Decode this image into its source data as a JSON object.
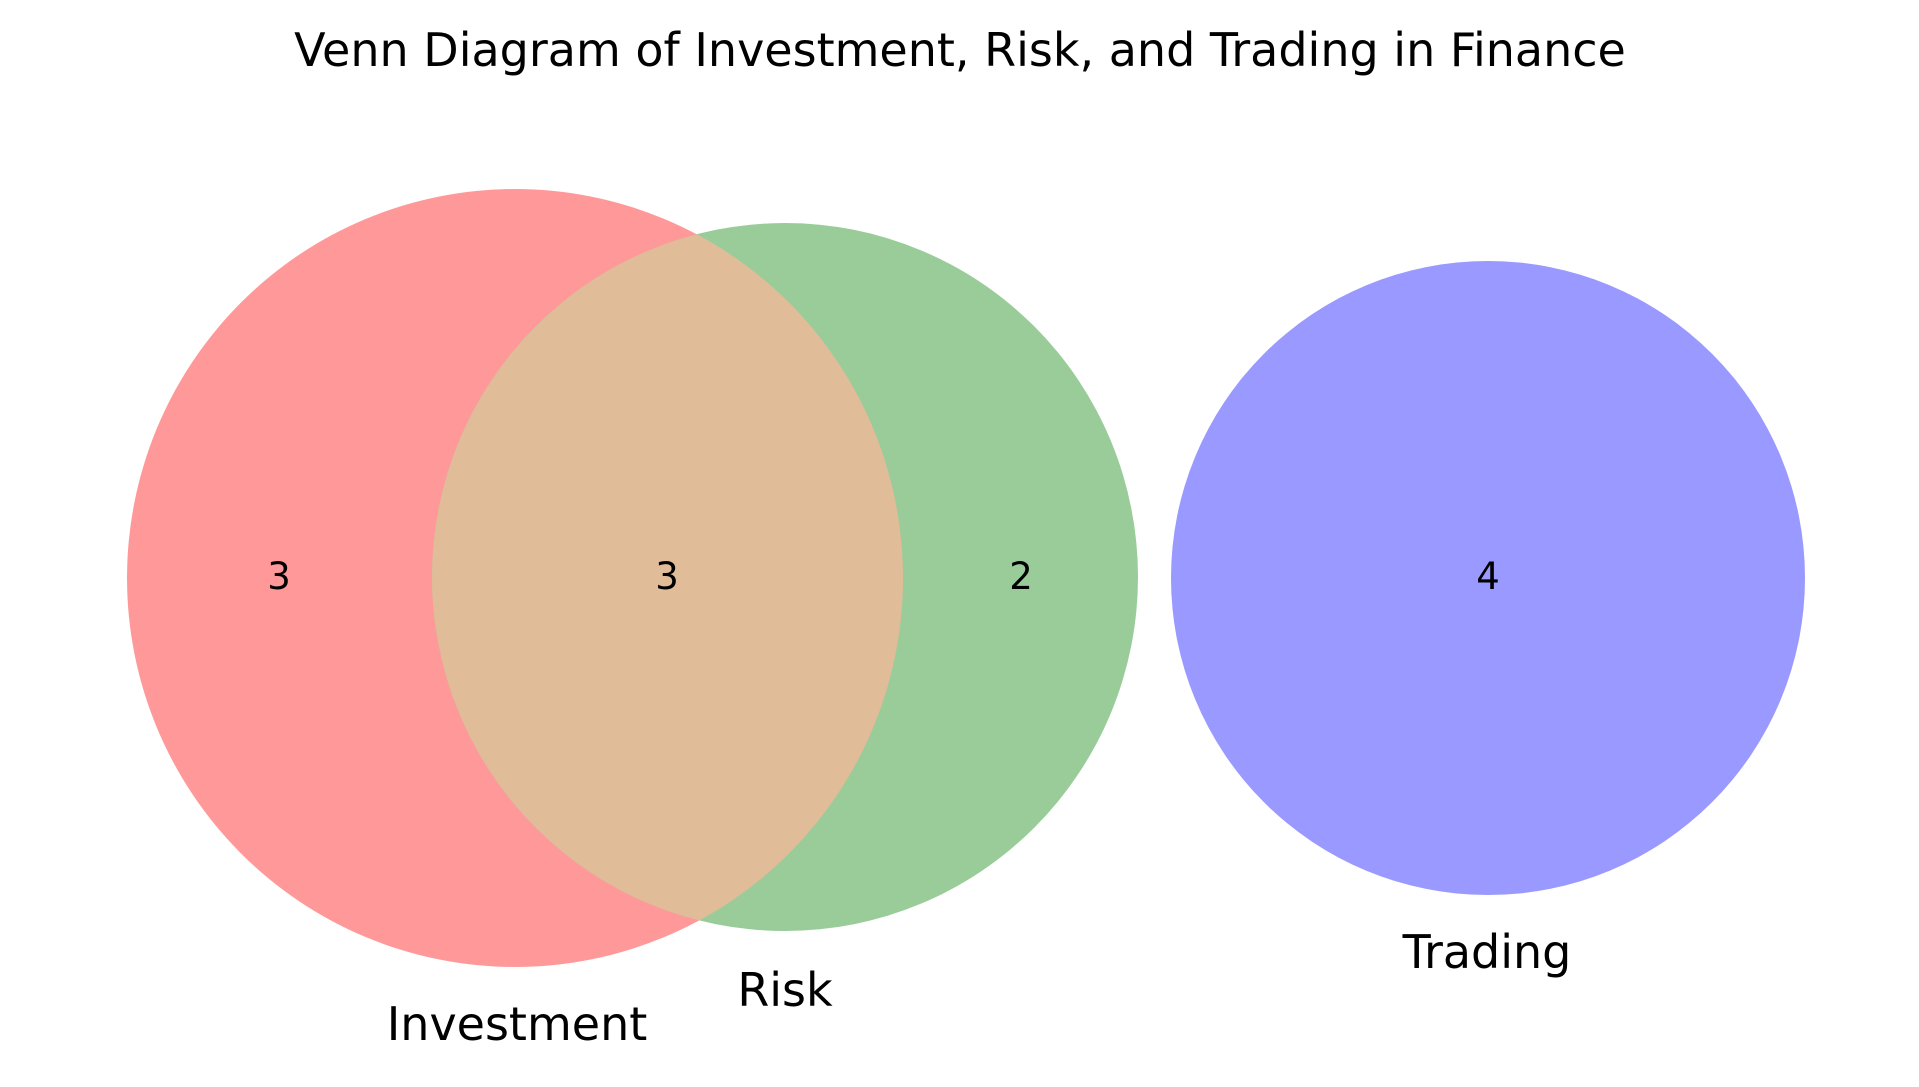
{
  "diagram": {
    "title": "Venn Diagram of Investment, Risk, and Trading in Finance",
    "sets": [
      {
        "id": "investment",
        "label": "Investment",
        "color": "#ff9999"
      },
      {
        "id": "risk",
        "label": "Risk",
        "color": "#99cc99"
      },
      {
        "id": "trading",
        "label": "Trading",
        "color": "#9999ff"
      }
    ],
    "overlap_color": "#e0bc99",
    "regions": {
      "investment_only": "3",
      "investment_risk": "3",
      "risk_only": "2",
      "trading_only": "4"
    }
  }
}
